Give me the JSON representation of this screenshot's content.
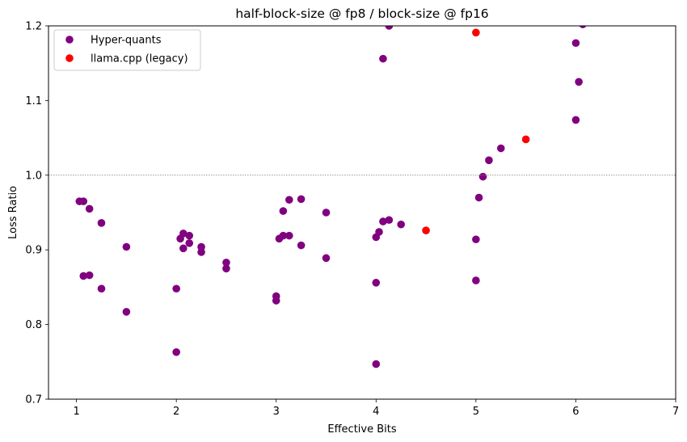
{
  "chart_data": {
    "type": "scatter",
    "title": "half-block-size @ fp8 / block-size @ fp16",
    "xlabel": "Effective Bits",
    "ylabel": "Loss Ratio",
    "xlim": [
      0.72,
      7.0
    ],
    "ylim": [
      0.7,
      1.2
    ],
    "xticks": [
      "1",
      "2",
      "3",
      "4",
      "5",
      "6",
      "7"
    ],
    "yticks": [
      "0.7",
      "0.8",
      "0.9",
      "1.0",
      "1.1",
      "1.2"
    ],
    "reference_line": {
      "y": 1.0,
      "style": "dotted",
      "color": "#888888"
    },
    "grid": false,
    "legend": {
      "placement": "top-left"
    },
    "series": [
      {
        "name": "Hyper-quants",
        "color": "#800080",
        "points": [
          [
            1.03,
            0.965
          ],
          [
            1.07,
            0.965
          ],
          [
            1.13,
            0.955
          ],
          [
            1.25,
            0.936
          ],
          [
            1.5,
            0.904
          ],
          [
            1.07,
            0.865
          ],
          [
            1.13,
            0.866
          ],
          [
            1.25,
            0.848
          ],
          [
            1.5,
            0.817
          ],
          [
            2.0,
            0.848
          ],
          [
            2.0,
            0.763
          ],
          [
            2.04,
            0.915
          ],
          [
            2.07,
            0.922
          ],
          [
            2.07,
            0.902
          ],
          [
            2.13,
            0.919
          ],
          [
            2.13,
            0.909
          ],
          [
            2.25,
            0.904
          ],
          [
            2.25,
            0.897
          ],
          [
            2.5,
            0.883
          ],
          [
            2.5,
            0.875
          ],
          [
            3.0,
            0.838
          ],
          [
            3.0,
            0.832
          ],
          [
            3.03,
            0.915
          ],
          [
            3.07,
            0.919
          ],
          [
            3.07,
            0.952
          ],
          [
            3.13,
            0.919
          ],
          [
            3.13,
            0.967
          ],
          [
            3.25,
            0.906
          ],
          [
            3.25,
            0.968
          ],
          [
            3.5,
            0.95
          ],
          [
            3.5,
            0.889
          ],
          [
            4.0,
            0.917
          ],
          [
            4.0,
            0.856
          ],
          [
            4.0,
            0.747
          ],
          [
            4.03,
            0.924
          ],
          [
            4.07,
            0.938
          ],
          [
            4.07,
            1.156
          ],
          [
            4.13,
            0.94
          ],
          [
            4.13,
            1.2
          ],
          [
            4.25,
            0.934
          ],
          [
            5.0,
            0.914
          ],
          [
            5.0,
            0.859
          ],
          [
            5.03,
            0.97
          ],
          [
            5.07,
            0.998
          ],
          [
            5.13,
            1.02
          ],
          [
            5.25,
            1.036
          ],
          [
            6.0,
            1.177
          ],
          [
            6.0,
            1.074
          ],
          [
            6.03,
            1.125
          ],
          [
            6.07,
            1.202
          ]
        ]
      },
      {
        "name": "llama.cpp (legacy)",
        "color": "#ff0000",
        "points": [
          [
            4.5,
            0.926
          ],
          [
            5.0,
            1.191
          ],
          [
            5.5,
            1.048
          ]
        ]
      }
    ]
  }
}
